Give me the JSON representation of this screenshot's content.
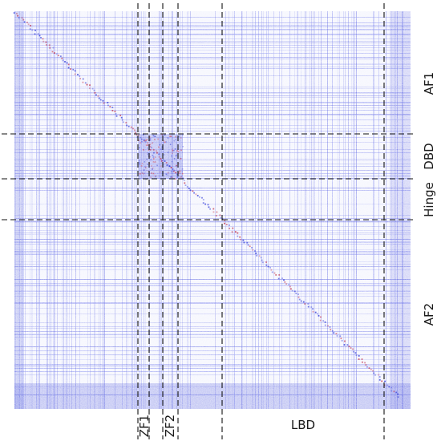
{
  "figure": {
    "type": "contact-map",
    "colors": {
      "base": "#5a64e8",
      "strong": "#2b35d8",
      "highlight": "#c0304a",
      "divider": "#111111"
    },
    "domains_right": [
      {
        "key": "af1",
        "label": "AF1"
      },
      {
        "key": "dbd",
        "label": "DBD"
      },
      {
        "key": "hinge",
        "label": "Hinge"
      },
      {
        "key": "af2",
        "label": "AF2"
      }
    ],
    "domains_bottom": [
      {
        "key": "zf1",
        "label": "ZF1"
      },
      {
        "key": "zf2",
        "label": "ZF2"
      },
      {
        "key": "lbd",
        "label": "LBD"
      }
    ]
  }
}
